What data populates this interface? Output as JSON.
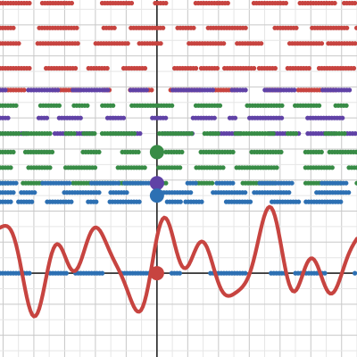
{
  "graph": {
    "x_range": [
      -5.1,
      6.5
    ],
    "y_range": [
      -2.7,
      8.8
    ],
    "axes": {
      "x_axis_y": 0,
      "y_axis_x": 0
    },
    "colors": {
      "curve": "#c74440",
      "blue": "#2d70b3",
      "green": "#388c46",
      "purple": "#6042a6",
      "red": "#c74440",
      "grid_minor": "#e6e6e6",
      "grid_major": "#c8c8c8",
      "axis": "#222222"
    },
    "series": [
      {
        "id": "red-dots",
        "color_key": "red",
        "rows_y": [
          8.7,
          7.9,
          7.4,
          6.6,
          5.9
        ]
      },
      {
        "id": "purple-dots",
        "color_key": "purple",
        "rows_y": [
          5.9,
          5.0,
          4.5
        ]
      },
      {
        "id": "green-dots",
        "color_key": "green",
        "rows_y": [
          5.4,
          4.5,
          3.9,
          3.4,
          2.9
        ]
      },
      {
        "id": "blue-dots",
        "color_key": "blue",
        "rows_y": [
          2.9,
          2.6,
          2.3,
          0.0
        ]
      }
    ],
    "highlight_points": [
      {
        "id": "green-point",
        "color_key": "green",
        "x": 0,
        "y": 3.9
      },
      {
        "id": "purple-point",
        "color_key": "purple",
        "x": 0,
        "y": 2.9
      },
      {
        "id": "blue-point",
        "color_key": "blue",
        "x": 0,
        "y": 2.5
      },
      {
        "id": "red-point",
        "color_key": "red",
        "x": 0,
        "y": 0
      }
    ]
  }
}
